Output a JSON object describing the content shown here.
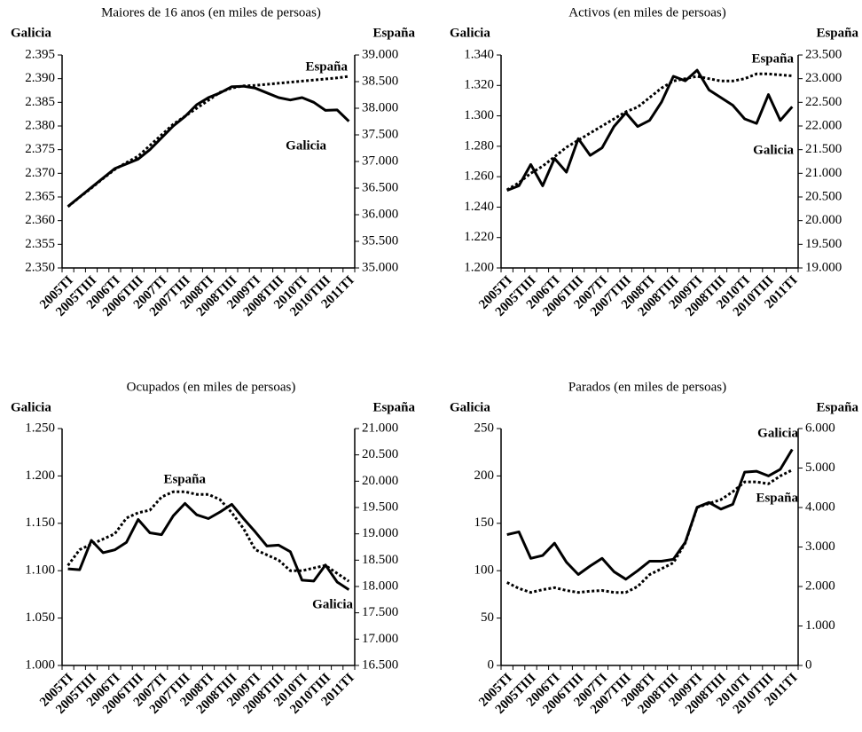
{
  "chart_data": [
    {
      "type": "line",
      "title": "Maiores de 16 anos (en miles de persoas)",
      "y_label": "Galicia",
      "y2_label": "España",
      "categories": [
        "2005TI",
        null,
        "2005TIII",
        null,
        "2006TI",
        null,
        "2006TIII",
        null,
        "2007TI",
        null,
        "2007TIII",
        null,
        "2008TI",
        null,
        "2008TIII",
        null,
        "2009TI",
        null,
        "2008TIII",
        null,
        "2010TI",
        null,
        "2010TIII",
        null,
        "2011TI"
      ],
      "ylim": [
        2350,
        2395
      ],
      "yticks": [
        {
          "value": 2350,
          "label": "2.350"
        },
        {
          "value": 2355,
          "label": "2.355"
        },
        {
          "value": 2360,
          "label": "2.360"
        },
        {
          "value": 2365,
          "label": "2.365"
        },
        {
          "value": 2370,
          "label": "2.370"
        },
        {
          "value": 2375,
          "label": "2.375"
        },
        {
          "value": 2380,
          "label": "2.380"
        },
        {
          "value": 2385,
          "label": "2.385"
        },
        {
          "value": 2390,
          "label": "2.390"
        },
        {
          "value": 2395,
          "label": "2.395"
        }
      ],
      "y2lim": [
        35000,
        39000
      ],
      "y2ticks": [
        {
          "value": 35000,
          "label": "35.000"
        },
        {
          "value": 35500,
          "label": "35.500"
        },
        {
          "value": 36000,
          "label": "36.000"
        },
        {
          "value": 36500,
          "label": "36.500"
        },
        {
          "value": 37000,
          "label": "37.000"
        },
        {
          "value": 37500,
          "label": "37.500"
        },
        {
          "value": 38000,
          "label": "38.000"
        },
        {
          "value": 38500,
          "label": "38.500"
        },
        {
          "value": 39000,
          "label": "39.000"
        }
      ],
      "series": [
        {
          "name": "Galicia",
          "color": "#000000",
          "linestyle": "solid",
          "values": [
            2363,
            2365,
            2367,
            2369,
            2371,
            2372,
            2373,
            2375,
            2377.5,
            2380,
            2382,
            2384.5,
            2386,
            2387,
            2388.3,
            2388.4,
            2388,
            2387,
            2386,
            2385.5,
            2386,
            2385,
            2383.3,
            2383.4,
            2381
          ]
        },
        {
          "name": "España",
          "color": "#000000",
          "linestyle": "dotted",
          "axis": "y2",
          "values": [
            36150,
            36330,
            36500,
            36680,
            36850,
            36980,
            37100,
            37300,
            37500,
            37700,
            37850,
            38000,
            38150,
            38300,
            38380,
            38420,
            38430,
            38450,
            38470,
            38490,
            38510,
            38530,
            38550,
            38570,
            38600
          ]
        }
      ]
    },
    {
      "type": "line",
      "title": "Activos (en miles de persoas)",
      "y_label": "Galicia",
      "y2_label": "España",
      "categories": [
        "2005TI",
        null,
        "2005TIII",
        null,
        "2006TI",
        null,
        "2006TIII",
        null,
        "2007TI",
        null,
        "2007TIII",
        null,
        "2008TI",
        null,
        "2008TIII",
        null,
        "2009TI",
        null,
        "2008TIII",
        null,
        "2010TI",
        null,
        "2010TIII",
        null,
        "2011TI"
      ],
      "ylim": [
        1200,
        1340
      ],
      "yticks": [
        {
          "value": 1200,
          "label": "1.200"
        },
        {
          "value": 1220,
          "label": "1.220"
        },
        {
          "value": 1240,
          "label": "1.240"
        },
        {
          "value": 1260,
          "label": "1.260"
        },
        {
          "value": 1280,
          "label": "1.280"
        },
        {
          "value": 1300,
          "label": "1.300"
        },
        {
          "value": 1320,
          "label": "1.320"
        },
        {
          "value": 1340,
          "label": "1.340"
        }
      ],
      "y2lim": [
        19000,
        23500
      ],
      "y2ticks": [
        {
          "value": 19000,
          "label": "19.000"
        },
        {
          "value": 19500,
          "label": "19.500"
        },
        {
          "value": 20000,
          "label": "20.000"
        },
        {
          "value": 20500,
          "label": "20.500"
        },
        {
          "value": 21000,
          "label": "21.000"
        },
        {
          "value": 21500,
          "label": "21.500"
        },
        {
          "value": 22000,
          "label": "22.000"
        },
        {
          "value": 22500,
          "label": "22.500"
        },
        {
          "value": 23000,
          "label": "23.000"
        },
        {
          "value": 23500,
          "label": "23.500"
        }
      ],
      "series": [
        {
          "name": "Galicia",
          "color": "#000000",
          "linestyle": "solid",
          "values": [
            1251,
            1254,
            1268,
            1254,
            1272,
            1263,
            1285,
            1274,
            1279,
            1293,
            1302,
            1293,
            1297,
            1309,
            1326,
            1323,
            1330,
            1317,
            1312,
            1307,
            1298,
            1295,
            1314,
            1297,
            1306
          ]
        },
        {
          "name": "España",
          "color": "#000000",
          "linestyle": "dotted",
          "axis": "y2",
          "values": [
            20650,
            20800,
            21000,
            21150,
            21350,
            21550,
            21700,
            21850,
            22000,
            22150,
            22300,
            22400,
            22600,
            22800,
            22950,
            23000,
            23050,
            23000,
            22950,
            22950,
            23000,
            23100,
            23100,
            23080,
            23060
          ]
        }
      ]
    },
    {
      "type": "line",
      "title": "Ocupados (en miles de persoas)",
      "y_label": "Galicia",
      "y2_label": "España",
      "categories": [
        "2005TI",
        null,
        "2005TIII",
        null,
        "2006TI",
        null,
        "2006TIII",
        null,
        "2007TI",
        null,
        "2007TIII",
        null,
        "2008TI",
        null,
        "2008TIII",
        null,
        "2009TI",
        null,
        "2008TIII",
        null,
        "2010TI",
        null,
        "2010TIII",
        null,
        "2011TI"
      ],
      "ylim": [
        1000,
        1250
      ],
      "yticks": [
        {
          "value": 1000,
          "label": "1.000"
        },
        {
          "value": 1050,
          "label": "1.050"
        },
        {
          "value": 1100,
          "label": "1.100"
        },
        {
          "value": 1150,
          "label": "1.150"
        },
        {
          "value": 1200,
          "label": "1.200"
        },
        {
          "value": 1250,
          "label": "1.250"
        }
      ],
      "y2lim": [
        16500,
        21000
      ],
      "y2ticks": [
        {
          "value": 16500,
          "label": "16.500"
        },
        {
          "value": 17000,
          "label": "17.000"
        },
        {
          "value": 17500,
          "label": "17.500"
        },
        {
          "value": 18000,
          "label": "18.000"
        },
        {
          "value": 18500,
          "label": "18.500"
        },
        {
          "value": 19000,
          "label": "19.000"
        },
        {
          "value": 19500,
          "label": "19.500"
        },
        {
          "value": 20000,
          "label": "20.000"
        },
        {
          "value": 20500,
          "label": "20.500"
        },
        {
          "value": 21000,
          "label": "21.000"
        }
      ],
      "series": [
        {
          "name": "Galicia",
          "color": "#000000",
          "linestyle": "solid",
          "values": [
            1102,
            1101,
            1132,
            1119,
            1122,
            1130,
            1154,
            1140,
            1138,
            1158,
            1171,
            1159,
            1155,
            1162,
            1170,
            1155,
            1141,
            1126,
            1127,
            1120,
            1090,
            1089,
            1106,
            1088,
            1080
          ]
        },
        {
          "name": "España",
          "color": "#000000",
          "linestyle": "dotted",
          "axis": "y2",
          "values": [
            18400,
            18700,
            18800,
            18900,
            19000,
            19300,
            19400,
            19450,
            19700,
            19800,
            19800,
            19750,
            19750,
            19650,
            19400,
            19100,
            18700,
            18600,
            18500,
            18300,
            18300,
            18350,
            18400,
            18250,
            18100
          ]
        }
      ]
    },
    {
      "type": "line",
      "title": "Parados (en miles de persoas)",
      "y_label": "Galicia",
      "y2_label": "España",
      "categories": [
        "2005TI",
        null,
        "2005TIII",
        null,
        "2006TI",
        null,
        "2006TIII",
        null,
        "2007TI",
        null,
        "2007TIII",
        null,
        "2008TI",
        null,
        "2008TIII",
        null,
        "2009TI",
        null,
        "2008TIII",
        null,
        "2010TI",
        null,
        "2010TIII",
        null,
        "2011TI"
      ],
      "ylim": [
        0,
        250
      ],
      "yticks": [
        0,
        50,
        100,
        150,
        200,
        250
      ],
      "y2lim": [
        0,
        6000
      ],
      "y2ticks": [
        0,
        {
          "value": 1000,
          "label": "1.000"
        },
        {
          "value": 2000,
          "label": "2.000"
        },
        {
          "value": 3000,
          "label": "3.000"
        },
        {
          "value": 4000,
          "label": "4.000"
        },
        {
          "value": 5000,
          "label": "5.000"
        },
        {
          "value": 6000,
          "label": "6.000"
        }
      ],
      "series": [
        {
          "name": "Galicia",
          "color": "#000000",
          "linestyle": "solid",
          "values": [
            138,
            141,
            113,
            116,
            129,
            109,
            96,
            105,
            113,
            99,
            91,
            100,
            110,
            110,
            112,
            130,
            167,
            172,
            165,
            170,
            204,
            205,
            200,
            207,
            228
          ]
        },
        {
          "name": "España",
          "color": "#000000",
          "linestyle": "dotted",
          "axis": "y2",
          "values": [
            2100,
            1950,
            1850,
            1920,
            1970,
            1900,
            1850,
            1880,
            1900,
            1850,
            1850,
            2000,
            2300,
            2450,
            2600,
            3100,
            4000,
            4100,
            4200,
            4400,
            4650,
            4650,
            4600,
            4800,
            4950
          ]
        }
      ]
    }
  ]
}
